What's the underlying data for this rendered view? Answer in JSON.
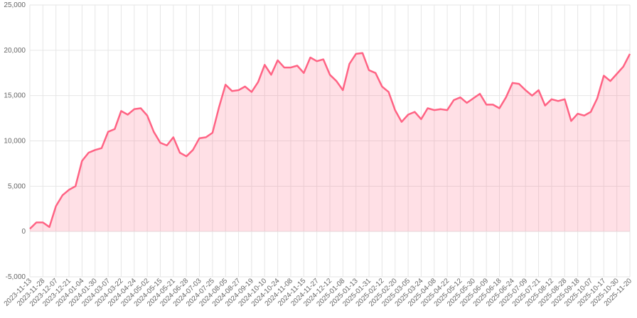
{
  "chart_data": {
    "type": "area",
    "categories": [
      "2023-11-13",
      null,
      "2023-11-28",
      null,
      "2023-12-07",
      null,
      "2023-12-21",
      null,
      "2024-01-04",
      null,
      "2024-01-30",
      null,
      "2024-03-07",
      null,
      "2024-03-22",
      null,
      "2024-04-24",
      null,
      "2024-05-02",
      null,
      "2024-05-15",
      null,
      "2024-05-21",
      null,
      "2024-06-28",
      null,
      "2024-07-03",
      null,
      "2024-07-25",
      null,
      "2024-08-05",
      null,
      "2024-08-27",
      null,
      "2024-09-19",
      null,
      "2024-10-10",
      null,
      "2024-10-24",
      null,
      "2024-11-08",
      null,
      "2024-11-15",
      null,
      "2024-11-27",
      null,
      "2024-12-12",
      null,
      "2025-01-08",
      null,
      "2025-01-13",
      null,
      "2025-01-31",
      null,
      "2025-02-12",
      null,
      "2025-02-20",
      null,
      "2025-03-05",
      null,
      "2025-03-24",
      null,
      "2025-04-08",
      null,
      "2025-04-22",
      null,
      "2025-05-12",
      null,
      "2025-05-30",
      null,
      "2025-06-09",
      null,
      "2025-06-18",
      null,
      "2025-06-24",
      null,
      "2025-07-09",
      null,
      "2025-07-21",
      null,
      "2025-08-12",
      null,
      "2025-08-28",
      null,
      "2025-09-18",
      null,
      "2025-10-07",
      null,
      "2025-10-17",
      null,
      "2025-10-30",
      null,
      "2025-11-20"
    ],
    "values": [
      300,
      1000,
      1000,
      500,
      2800,
      4000,
      4600,
      5000,
      7800,
      8700,
      9000,
      9200,
      11000,
      11300,
      13300,
      12900,
      13500,
      13600,
      12800,
      11000,
      9800,
      9500,
      10400,
      8700,
      8300,
      9000,
      10300,
      10400,
      10900,
      13700,
      16200,
      15500,
      15600,
      16000,
      15400,
      16500,
      18400,
      17300,
      18900,
      18100,
      18100,
      18300,
      17500,
      19200,
      18800,
      19000,
      17300,
      16600,
      15600,
      18500,
      19600,
      19700,
      17800,
      17500,
      16000,
      15400,
      13400,
      12100,
      12900,
      13200,
      12400,
      13600,
      13400,
      13500,
      13400,
      14500,
      14800,
      14200,
      14700,
      15200,
      14000,
      14000,
      13600,
      14800,
      16400,
      16300,
      15600,
      15000,
      15600,
      13900,
      14600,
      14400,
      14600,
      12200,
      13000,
      12800,
      13200,
      14700,
      17200,
      16600,
      17400,
      18200,
      19600
    ],
    "color": "#ff6384",
    "fill": "rgba(255,99,132,0.2)",
    "ylim": [
      -5000,
      25000
    ],
    "yticks": [
      {
        "value": -5000,
        "label": "-5,000"
      },
      0,
      {
        "value": 5000,
        "label": "5,000"
      },
      {
        "value": 10000,
        "label": "10,000"
      },
      {
        "value": 15000,
        "label": "15,000"
      },
      {
        "value": 20000,
        "label": "20,000"
      },
      {
        "value": 25000,
        "label": "25,000"
      }
    ],
    "grid": true
  }
}
